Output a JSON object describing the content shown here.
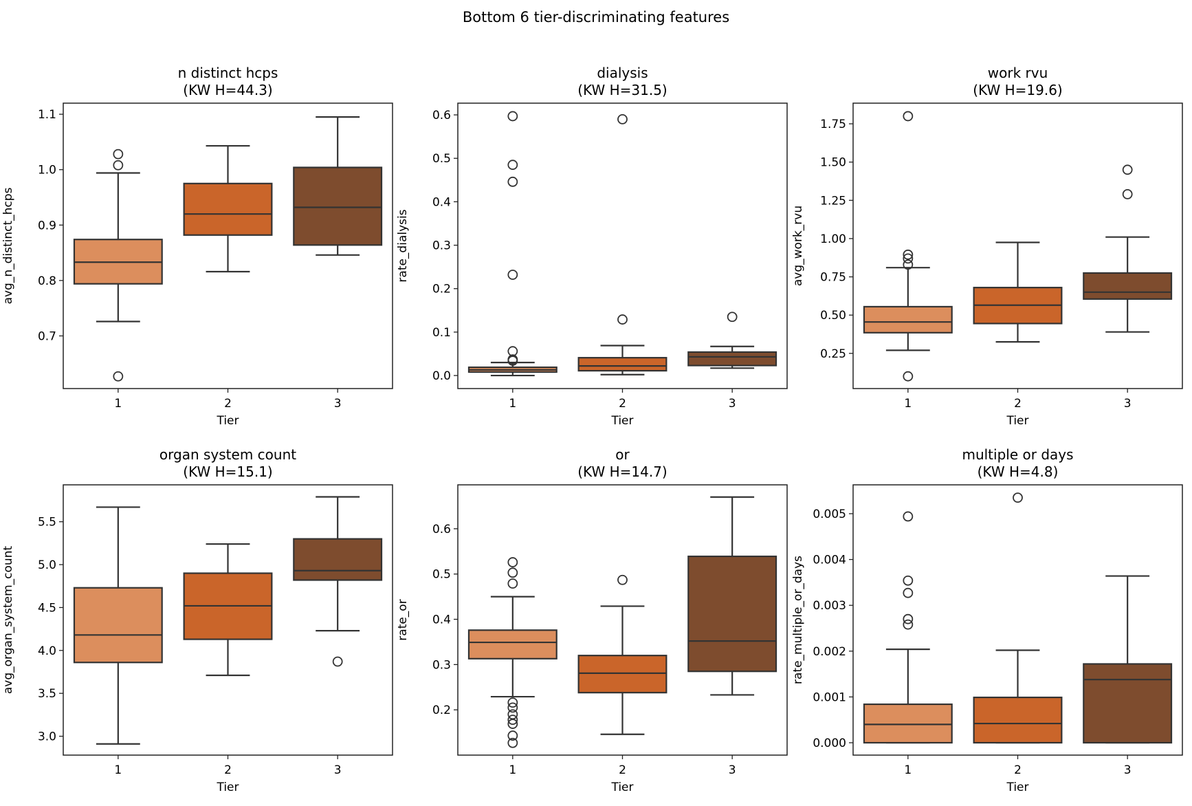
{
  "chart_data": {
    "type": "box",
    "title": "Bottom 6 tier-discriminating features",
    "colors": {
      "1": "#DC8E5D",
      "2": "#CA652A",
      "3": "#7E4C2E",
      "line": "#333333"
    },
    "panels": [
      {
        "title": "n distinct hcps",
        "subtitle": "(KW H=44.3)",
        "xlabel": "Tier",
        "ylabel": "avg_n_distinct_hcps",
        "categories": [
          "1",
          "2",
          "3"
        ],
        "ylim": [
          0.605,
          1.12
        ],
        "yticks": [
          0.7,
          0.8,
          0.9,
          1.0,
          1.1
        ],
        "yticklabels": [
          "0.7",
          "0.8",
          "0.9",
          "1.0",
          "1.1"
        ],
        "boxes": [
          {
            "whislo": 0.726,
            "q1": 0.794,
            "med": 0.833,
            "q3": 0.874,
            "whishi": 0.994,
            "fliers": [
              1.028,
              1.008,
              0.627
            ]
          },
          {
            "whislo": 0.816,
            "q1": 0.882,
            "med": 0.92,
            "q3": 0.975,
            "whishi": 1.043,
            "fliers": []
          },
          {
            "whislo": 0.846,
            "q1": 0.864,
            "med": 0.932,
            "q3": 1.004,
            "whishi": 1.095,
            "fliers": []
          }
        ]
      },
      {
        "title": "dialysis",
        "subtitle": "(KW H=31.5)",
        "xlabel": "Tier",
        "ylabel": "rate_dialysis",
        "categories": [
          "1",
          "2",
          "3"
        ],
        "ylim": [
          -0.03,
          0.627
        ],
        "yticks": [
          0,
          0.1,
          0.2,
          0.3,
          0.4,
          0.5,
          0.6
        ],
        "yticklabels": [
          "0.0",
          "0.1",
          "0.2",
          "0.3",
          "0.4",
          "0.5",
          "0.6"
        ],
        "boxes": [
          {
            "whislo": 0.0,
            "q1": 0.008,
            "med": 0.013,
            "q3": 0.019,
            "whishi": 0.03,
            "fliers": [
              0.597,
              0.485,
              0.446,
              0.232,
              0.056,
              0.037,
              0.034
            ]
          },
          {
            "whislo": 0.002,
            "q1": 0.011,
            "med": 0.022,
            "q3": 0.041,
            "whishi": 0.069,
            "fliers": [
              0.59,
              0.129
            ]
          },
          {
            "whislo": 0.017,
            "q1": 0.023,
            "med": 0.043,
            "q3": 0.054,
            "whishi": 0.067,
            "fliers": [
              0.135
            ]
          }
        ]
      },
      {
        "title": "work rvu",
        "subtitle": "(KW H=19.6)",
        "xlabel": "Tier",
        "ylabel": "avg_work_rvu",
        "categories": [
          "1",
          "2",
          "3"
        ],
        "ylim": [
          0.02,
          1.885
        ],
        "yticks": [
          0.25,
          0.5,
          0.75,
          1.0,
          1.25,
          1.5,
          1.75
        ],
        "yticklabels": [
          "0.25",
          "0.50",
          "0.75",
          "1.00",
          "1.25",
          "1.50",
          "1.75"
        ],
        "boxes": [
          {
            "whislo": 0.27,
            "q1": 0.385,
            "med": 0.455,
            "q3": 0.555,
            "whishi": 0.81,
            "fliers": [
              1.8,
              0.895,
              0.87,
              0.83,
              0.1
            ]
          },
          {
            "whislo": 0.325,
            "q1": 0.445,
            "med": 0.565,
            "q3": 0.68,
            "whishi": 0.975,
            "fliers": []
          },
          {
            "whislo": 0.39,
            "q1": 0.605,
            "med": 0.65,
            "q3": 0.775,
            "whishi": 1.01,
            "fliers": [
              1.45,
              1.29
            ]
          }
        ]
      },
      {
        "title": "organ system count",
        "subtitle": "(KW H=15.1)",
        "xlabel": "Tier",
        "ylabel": "avg_organ_system_count",
        "categories": [
          "1",
          "2",
          "3"
        ],
        "ylim": [
          2.78,
          5.93
        ],
        "yticks": [
          3.0,
          3.5,
          4.0,
          4.5,
          5.0,
          5.5
        ],
        "yticklabels": [
          "3.0",
          "3.5",
          "4.0",
          "4.5",
          "5.0",
          "5.5"
        ],
        "boxes": [
          {
            "whislo": 2.91,
            "q1": 3.86,
            "med": 4.18,
            "q3": 4.73,
            "whishi": 5.67,
            "fliers": []
          },
          {
            "whislo": 3.71,
            "q1": 4.13,
            "med": 4.52,
            "q3": 4.9,
            "whishi": 5.24,
            "fliers": []
          },
          {
            "whislo": 4.23,
            "q1": 4.82,
            "med": 4.93,
            "q3": 5.3,
            "whishi": 5.79,
            "fliers": [
              3.87
            ]
          }
        ]
      },
      {
        "title": "or",
        "subtitle": "(KW H=14.7)",
        "xlabel": "Tier",
        "ylabel": "rate_or",
        "categories": [
          "1",
          "2",
          "3"
        ],
        "ylim": [
          0.1,
          0.697
        ],
        "yticks": [
          0.2,
          0.3,
          0.4,
          0.5,
          0.6
        ],
        "yticklabels": [
          "0.2",
          "0.3",
          "0.4",
          "0.5",
          "0.6"
        ],
        "boxes": [
          {
            "whislo": 0.229,
            "q1": 0.313,
            "med": 0.349,
            "q3": 0.376,
            "whishi": 0.45,
            "fliers": [
              0.526,
              0.503,
              0.479,
              0.216,
              0.205,
              0.19,
              0.178,
              0.169,
              0.143,
              0.127
            ]
          },
          {
            "whislo": 0.146,
            "q1": 0.238,
            "med": 0.281,
            "q3": 0.32,
            "whishi": 0.429,
            "fliers": [
              0.487
            ]
          },
          {
            "whislo": 0.233,
            "q1": 0.285,
            "med": 0.352,
            "q3": 0.539,
            "whishi": 0.67,
            "fliers": []
          }
        ]
      },
      {
        "title": "multiple or days",
        "subtitle": "(KW H=4.8)",
        "xlabel": "Tier",
        "ylabel": "rate_multiple_or_days",
        "categories": [
          "1",
          "2",
          "3"
        ],
        "ylim": [
          -0.00027,
          0.00563
        ],
        "yticks": [
          0,
          0.001,
          0.002,
          0.003,
          0.004,
          0.005
        ],
        "yticklabels": [
          "0.000",
          "0.001",
          "0.002",
          "0.003",
          "0.004",
          "0.005"
        ],
        "boxes": [
          {
            "whislo": 0,
            "q1": 0,
            "med": 0.0004,
            "q3": 0.00084,
            "whishi": 0.00204,
            "fliers": [
              0.00494,
              0.00354,
              0.00327,
              0.0027,
              0.00258
            ]
          },
          {
            "whislo": 0,
            "q1": 0,
            "med": 0.00042,
            "q3": 0.00099,
            "whishi": 0.00202,
            "fliers": [
              0.00535
            ]
          },
          {
            "whislo": 0,
            "q1": 0,
            "med": 0.00138,
            "q3": 0.00172,
            "whishi": 0.00364,
            "fliers": []
          }
        ]
      }
    ]
  }
}
